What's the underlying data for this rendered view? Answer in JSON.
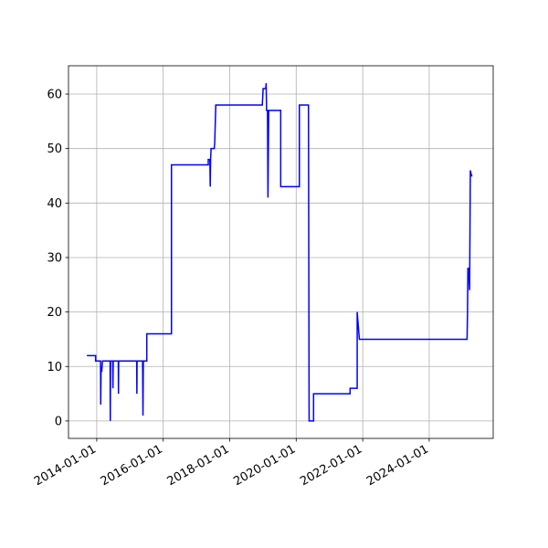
{
  "chart_data": {
    "type": "line",
    "color": "#0000ff",
    "grid": true,
    "x": [
      "2013-09-15",
      "2013-12-20",
      "2013-12-20",
      "2014-02-12",
      "2014-02-14",
      "2014-02-18",
      "2014-02-25",
      "2014-03-05",
      "2014-05-28",
      "2014-05-30",
      "2014-06-02",
      "2014-06-26",
      "2014-06-28",
      "2014-07-01",
      "2014-08-26",
      "2014-08-28",
      "2014-08-30",
      "2015-03-16",
      "2015-03-18",
      "2015-03-20",
      "2015-05-20",
      "2015-05-24",
      "2015-05-28",
      "2015-07-05",
      "2015-07-05",
      "2016-04-01",
      "2016-04-01",
      "2017-05-10",
      "2017-05-10",
      "2017-05-28",
      "2017-06-01",
      "2017-06-05",
      "2017-06-10",
      "2017-07-15",
      "2017-07-20",
      "2017-08-01",
      "2018-12-25",
      "2019-01-03",
      "2019-02-01",
      "2019-02-05",
      "2019-02-10",
      "2019-02-20",
      "2019-02-25",
      "2019-03-05",
      "2019-07-15",
      "2019-07-15",
      "2020-02-05",
      "2020-02-05",
      "2020-05-15",
      "2020-05-22",
      "2020-07-10",
      "2020-07-10",
      "2021-08-15",
      "2021-08-15",
      "2021-11-01",
      "2021-11-01",
      "2021-11-25",
      "2025-02-20",
      "2025-02-25",
      "2025-03-01",
      "2025-03-10",
      "2025-03-20",
      "2025-03-28",
      "2025-04-10",
      "2025-04-20"
    ],
    "values": [
      12,
      12,
      11,
      11,
      3,
      10,
      9,
      11,
      11,
      0,
      11,
      11,
      6,
      11,
      11,
      5,
      11,
      11,
      5,
      11,
      11,
      1,
      11,
      11,
      16,
      16,
      47,
      47,
      48,
      48,
      43,
      48,
      50,
      50,
      51,
      58,
      58,
      61,
      61,
      62,
      57,
      57,
      41,
      57,
      57,
      43,
      43,
      58,
      58,
      0,
      0,
      5,
      5,
      6,
      6,
      20,
      15,
      15,
      20,
      28,
      28,
      24,
      46,
      45,
      45
    ],
    "xlim": [
      "2013-02-25",
      "2025-12-04"
    ],
    "xticks": [
      "2014-01-01",
      "2016-01-01",
      "2018-01-01",
      "2020-01-01",
      "2022-01-01",
      "2024-01-01"
    ],
    "ylim": [
      -3.2,
      65.2
    ],
    "yticks": [
      0,
      10,
      20,
      30,
      40,
      50,
      60
    ]
  }
}
